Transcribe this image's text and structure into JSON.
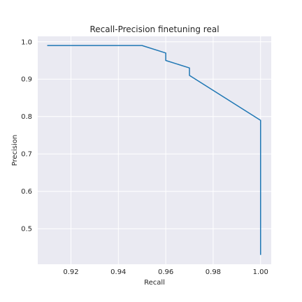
{
  "chart_data": {
    "type": "line",
    "title": "Recall-Precision finetuning real",
    "xlabel": "Recall",
    "ylabel": "Precision",
    "xlim": [
      0.906,
      1.0045
    ],
    "ylim": [
      0.405,
      1.0145
    ],
    "xticks": [
      0.92,
      0.94,
      0.96,
      0.98,
      1.0
    ],
    "xtick_labels": [
      "0.92",
      "0.94",
      "0.96",
      "0.98",
      "1.00"
    ],
    "yticks": [
      0.5,
      0.6,
      0.7,
      0.8,
      0.9,
      1.0
    ],
    "ytick_labels": [
      "0.5",
      "0.6",
      "0.7",
      "0.8",
      "0.9",
      "1.0"
    ],
    "grid": true,
    "style": "darkgrid",
    "series": [
      {
        "color": "#1f77b4",
        "x": [
          0.91,
          0.95,
          0.96,
          0.96,
          0.97,
          0.97,
          1.0,
          1.0
        ],
        "y": [
          0.99,
          0.99,
          0.97,
          0.95,
          0.93,
          0.91,
          0.79,
          0.43
        ]
      }
    ]
  }
}
